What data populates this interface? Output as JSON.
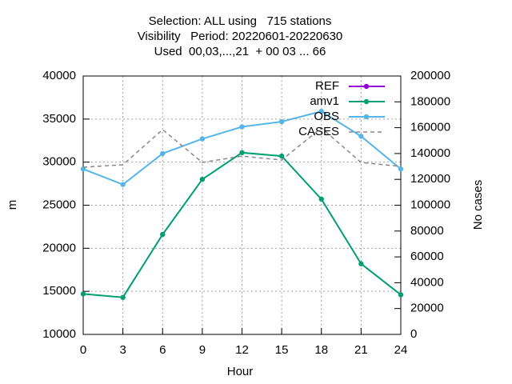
{
  "chart_data": {
    "type": "line",
    "title_lines": [
      "Selection: ALL using   715 stations",
      "Visibility   Period: 20220601-20220630",
      "Used  00,03,...,21  + 00 03 ... 66"
    ],
    "xlabel": "Hour",
    "ylabel": "m",
    "y2label": "No cases",
    "x": [
      0,
      3,
      6,
      9,
      12,
      15,
      18,
      21,
      24
    ],
    "xlim": [
      0,
      24
    ],
    "xticks": [
      0,
      3,
      6,
      9,
      12,
      15,
      18,
      21,
      24
    ],
    "ylim": [
      10000,
      40000
    ],
    "yticks": [
      10000,
      15000,
      20000,
      25000,
      30000,
      35000,
      40000
    ],
    "y2lim": [
      0,
      200000
    ],
    "y2ticks": [
      0,
      20000,
      40000,
      60000,
      80000,
      100000,
      120000,
      140000,
      160000,
      180000,
      200000
    ],
    "grid": true,
    "legend": "top-right",
    "series": [
      {
        "name": "REF",
        "color": "#9400d3",
        "values": [
          null,
          null,
          null,
          null,
          null,
          null,
          null,
          null,
          null
        ]
      },
      {
        "name": "amv1",
        "color": "#009e73",
        "values": [
          14700,
          14300,
          21600,
          28000,
          31100,
          30700,
          25700,
          18200,
          14600
        ]
      },
      {
        "name": "OBS",
        "color": "#56b4e9",
        "values": [
          29200,
          27400,
          31000,
          32700,
          34100,
          34700,
          35900,
          33000,
          29200
        ]
      },
      {
        "name": "CASES",
        "color": "#888888",
        "axis": "y2",
        "dashed": true,
        "values": [
          129400,
          131300,
          158500,
          133100,
          138000,
          135000,
          159800,
          133100,
          130000
        ]
      }
    ]
  }
}
